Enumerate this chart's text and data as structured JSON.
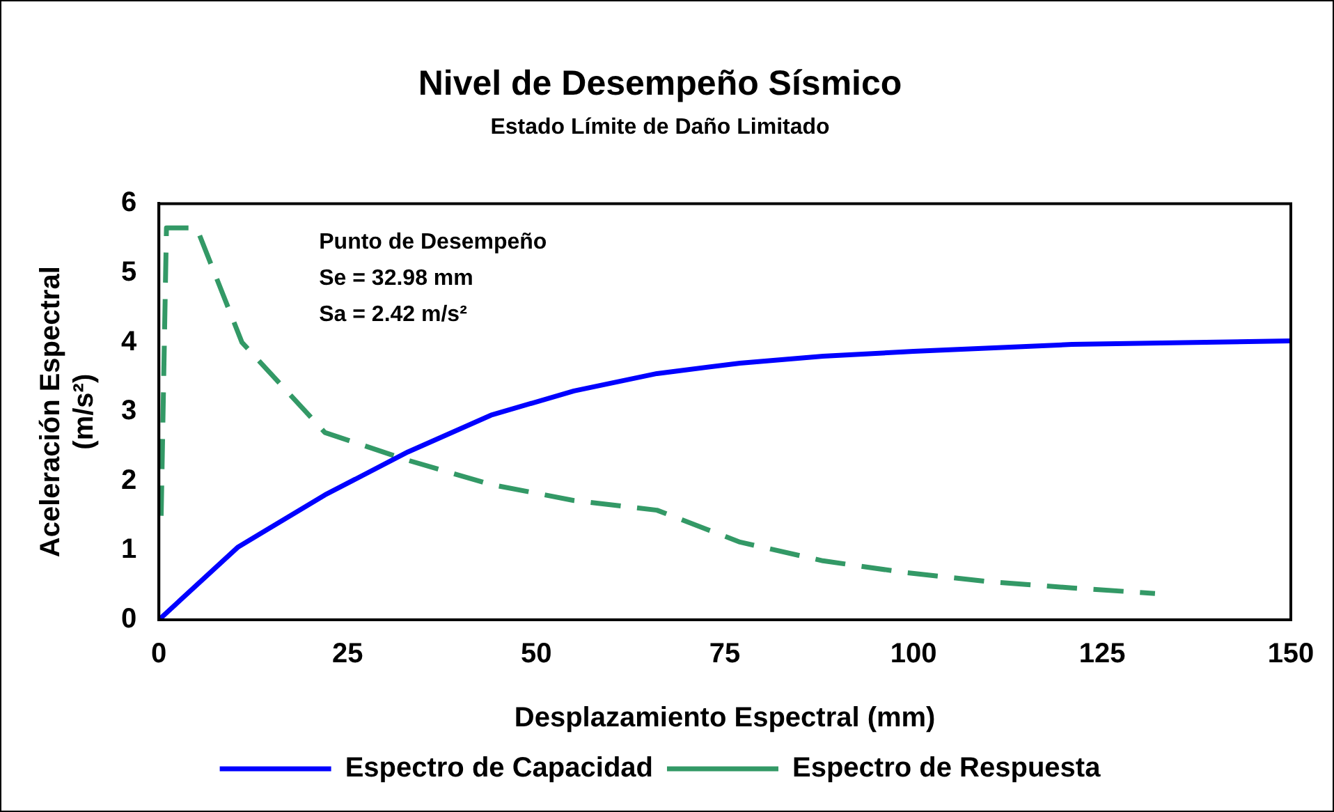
{
  "chart_data": {
    "type": "line",
    "title": "Nivel de Desempeño Sísmico",
    "subtitle": "Estado Límite de Daño Limitado",
    "xlabel": "Desplazamiento Espectral (mm)",
    "ylabel": "Aceleración Espectral (m/s²)",
    "annotations": [
      "Punto de Desempeño",
      "Se = 32.98 mm",
      "Sa = 2.42 m/s²"
    ],
    "xlim": [
      0,
      150
    ],
    "xticks": [
      0,
      25,
      50,
      75,
      100,
      125,
      150
    ],
    "ylim": [
      0,
      6
    ],
    "yticks": [
      0,
      1,
      2,
      3,
      4,
      5,
      6
    ],
    "grid": false,
    "legend": "bottom",
    "marker": "none",
    "series": [
      {
        "name": "Espectro de Capacidad",
        "color": "#0000ff",
        "line_style": "solid",
        "x": [
          0,
          10.5,
          22,
          33,
          44,
          55,
          66,
          77,
          88,
          100,
          121,
          150
        ],
        "values": [
          0,
          1.05,
          1.8,
          2.42,
          2.95,
          3.3,
          3.55,
          3.7,
          3.8,
          3.87,
          3.97,
          4.02
        ]
      },
      {
        "name": "Espectro de Respuesta",
        "color": "#339966",
        "line_style": "dashed",
        "x": [
          0.3,
          1,
          5,
          11,
          22,
          33,
          44,
          55,
          66,
          77,
          88,
          99,
          110,
          121,
          132
        ],
        "values": [
          1.5,
          5.65,
          5.65,
          4.0,
          2.7,
          2.3,
          1.95,
          1.72,
          1.58,
          1.12,
          0.85,
          0.68,
          0.55,
          0.46,
          0.38
        ]
      }
    ]
  }
}
